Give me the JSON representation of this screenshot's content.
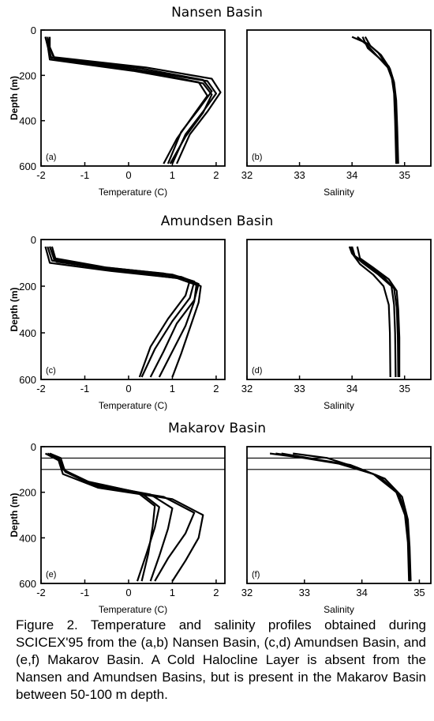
{
  "caption": "Figure 2.  Temperature and salinity profiles obtained during SCICEX'95 from the (a,b) Nansen Basin, (c,d) Amundsen Basin, and (e,f) Makarov Basin.  A Cold Halocline Layer is absent from the Nansen and Amundsen Basins, but is present in the Makarov Basin between 50-100 m depth.",
  "chart_data": [
    {
      "type": "line",
      "panel": "(a)",
      "basin_title": "Nansen Basin",
      "xlabel": "Temperature  (C)",
      "ylabel": "Depth  (m)",
      "xlim": [
        -2,
        2.2
      ],
      "ylim": [
        0,
        600
      ],
      "y_inverted": true,
      "xticks": [
        "-2",
        "-1",
        "0",
        "1",
        "2"
      ],
      "yticks": [
        "0",
        "200",
        "400",
        "600"
      ],
      "series": [
        {
          "x": [
            -1.9,
            -1.85,
            -1.8,
            0.3,
            1.7,
            1.9,
            1.6,
            1.2,
            0.9
          ],
          "y": [
            30,
            60,
            120,
            170,
            220,
            270,
            350,
            450,
            590
          ]
        },
        {
          "x": [
            -1.85,
            -1.8,
            -1.7,
            0.2,
            1.8,
            2.0,
            1.7,
            1.3,
            1.0
          ],
          "y": [
            30,
            80,
            125,
            175,
            225,
            280,
            360,
            460,
            590
          ]
        },
        {
          "x": [
            -1.9,
            -1.85,
            -1.75,
            0.0,
            1.6,
            1.8,
            1.5,
            1.1,
            0.8
          ],
          "y": [
            30,
            70,
            130,
            170,
            230,
            290,
            370,
            480,
            590
          ]
        },
        {
          "x": [
            -1.8,
            -1.8,
            -1.7,
            0.4,
            1.9,
            2.1,
            1.8,
            1.4,
            1.1
          ],
          "y": [
            30,
            75,
            120,
            165,
            215,
            275,
            360,
            460,
            590
          ]
        },
        {
          "x": [
            -1.9,
            -1.85,
            -1.8,
            0.1,
            1.7,
            1.9,
            1.7,
            1.3,
            0.95
          ],
          "y": [
            30,
            65,
            130,
            180,
            235,
            285,
            365,
            470,
            590
          ]
        }
      ]
    },
    {
      "type": "line",
      "panel": "(b)",
      "basin_title": "Nansen Basin",
      "xlabel": "Salinity",
      "ylabel": "",
      "xlim": [
        32,
        35.5
      ],
      "ylim": [
        0,
        600
      ],
      "y_inverted": true,
      "xticks": [
        "32",
        "33",
        "34",
        "35"
      ],
      "yticks": [],
      "series": [
        {
          "x": [
            34.0,
            34.3,
            34.5,
            34.65,
            34.75,
            34.8,
            34.82,
            34.84
          ],
          "y": [
            30,
            60,
            100,
            150,
            200,
            280,
            400,
            590
          ]
        },
        {
          "x": [
            34.2,
            34.3,
            34.5,
            34.7,
            34.78,
            34.83,
            34.85,
            34.86
          ],
          "y": [
            30,
            80,
            120,
            160,
            220,
            300,
            420,
            590
          ]
        },
        {
          "x": [
            34.25,
            34.35,
            34.55,
            34.72,
            34.8,
            34.84,
            34.86,
            34.88
          ],
          "y": [
            30,
            70,
            110,
            170,
            230,
            310,
            430,
            590
          ]
        },
        {
          "x": [
            34.1,
            34.28,
            34.48,
            34.68,
            34.76,
            34.82,
            34.84,
            34.85
          ],
          "y": [
            30,
            65,
            115,
            165,
            215,
            290,
            410,
            590
          ]
        }
      ]
    },
    {
      "type": "line",
      "panel": "(c)",
      "basin_title": "Amundsen Basin",
      "xlabel": "Temperature  (C)",
      "ylabel": "Depth  (m)",
      "xlim": [
        -2,
        2.2
      ],
      "ylim": [
        0,
        600
      ],
      "y_inverted": true,
      "xticks": [
        "-2",
        "-1",
        "0",
        "1",
        "2"
      ],
      "yticks": [
        "0",
        "200",
        "400",
        "600"
      ],
      "series": [
        {
          "x": [
            -1.8,
            -1.7,
            -0.5,
            1.0,
            1.5,
            1.4,
            1.0,
            0.6,
            0.3
          ],
          "y": [
            30,
            80,
            120,
            150,
            180,
            250,
            350,
            470,
            590
          ]
        },
        {
          "x": [
            -1.85,
            -1.75,
            -0.2,
            1.2,
            1.6,
            1.5,
            1.1,
            0.8,
            0.5
          ],
          "y": [
            30,
            90,
            130,
            160,
            190,
            260,
            360,
            480,
            590
          ]
        },
        {
          "x": [
            -1.8,
            -1.7,
            -0.8,
            0.8,
            1.4,
            1.3,
            0.9,
            0.5,
            0.25
          ],
          "y": [
            30,
            85,
            115,
            145,
            175,
            240,
            340,
            460,
            590
          ]
        },
        {
          "x": [
            -1.9,
            -1.8,
            -0.4,
            1.1,
            1.55,
            1.5,
            1.3,
            1.0,
            0.7
          ],
          "y": [
            30,
            100,
            135,
            165,
            195,
            265,
            370,
            480,
            590
          ]
        },
        {
          "x": [
            -1.75,
            -1.65,
            0.0,
            1.3,
            1.65,
            1.6,
            1.4,
            1.2,
            1.0
          ],
          "y": [
            30,
            95,
            140,
            170,
            200,
            270,
            380,
            490,
            590
          ]
        }
      ]
    },
    {
      "type": "line",
      "panel": "(d)",
      "basin_title": "Amundsen Basin",
      "xlabel": "Salinity",
      "ylabel": "",
      "xlim": [
        32,
        35.5
      ],
      "ylim": [
        0,
        600
      ],
      "y_inverted": true,
      "xticks": [
        "32",
        "33",
        "34",
        "35"
      ],
      "yticks": [],
      "series": [
        {
          "x": [
            33.95,
            34.0,
            34.2,
            34.5,
            34.75,
            34.8,
            34.82,
            34.83
          ],
          "y": [
            30,
            60,
            100,
            150,
            200,
            280,
            400,
            590
          ]
        },
        {
          "x": [
            34.0,
            34.05,
            34.3,
            34.6,
            34.8,
            34.85,
            34.87,
            34.88
          ],
          "y": [
            30,
            70,
            110,
            160,
            210,
            290,
            410,
            590
          ]
        },
        {
          "x": [
            34.1,
            34.15,
            34.4,
            34.7,
            34.85,
            34.88,
            34.9,
            34.9
          ],
          "y": [
            30,
            80,
            120,
            170,
            220,
            300,
            420,
            590
          ]
        },
        {
          "x": [
            33.98,
            34.02,
            34.15,
            34.4,
            34.6,
            34.7,
            34.72,
            34.73
          ],
          "y": [
            30,
            65,
            105,
            150,
            200,
            280,
            400,
            590
          ]
        }
      ]
    },
    {
      "type": "line",
      "panel": "(e)",
      "basin_title": "Makarov Basin",
      "xlabel": "Temperature  (C)",
      "ylabel": "Depth  (m)",
      "xlim": [
        -2,
        2.2
      ],
      "ylim": [
        0,
        600
      ],
      "y_inverted": true,
      "xticks": [
        "-2",
        "-1",
        "0",
        "1",
        "2"
      ],
      "yticks": [
        "0",
        "200",
        "400",
        "600"
      ],
      "reference_lines_y": [
        50,
        100
      ],
      "series": [
        {
          "x": [
            -1.8,
            -1.6,
            -1.5,
            -1.0,
            0.2,
            0.6,
            0.55,
            0.45,
            0.3
          ],
          "y": [
            30,
            50,
            100,
            150,
            200,
            260,
            350,
            470,
            590
          ]
        },
        {
          "x": [
            -1.85,
            -1.6,
            -1.5,
            -0.9,
            0.5,
            1.0,
            0.9,
            0.7,
            0.5
          ],
          "y": [
            30,
            55,
            100,
            160,
            210,
            270,
            360,
            480,
            590
          ]
        },
        {
          "x": [
            -1.8,
            -1.55,
            -1.45,
            -0.8,
            0.8,
            1.5,
            1.3,
            0.9,
            0.6
          ],
          "y": [
            30,
            50,
            110,
            170,
            220,
            290,
            380,
            490,
            590
          ]
        },
        {
          "x": [
            -1.9,
            -1.6,
            -1.5,
            -0.7,
            1.0,
            1.7,
            1.6,
            1.3,
            1.0
          ],
          "y": [
            30,
            60,
            120,
            180,
            230,
            300,
            400,
            500,
            590
          ]
        },
        {
          "x": [
            -1.85,
            -1.6,
            -1.45,
            -0.9,
            0.3,
            0.7,
            0.6,
            0.4,
            0.2
          ],
          "y": [
            30,
            50,
            105,
            155,
            205,
            265,
            355,
            475,
            590
          ]
        }
      ]
    },
    {
      "type": "line",
      "panel": "(f)",
      "basin_title": "Makarov Basin",
      "xlabel": "Salinity",
      "ylabel": "",
      "xlim": [
        32,
        35.2
      ],
      "ylim": [
        0,
        600
      ],
      "y_inverted": true,
      "xticks": [
        "32",
        "33",
        "34",
        "35"
      ],
      "yticks": [],
      "reference_lines_y": [
        50,
        100
      ],
      "series": [
        {
          "x": [
            32.4,
            33.0,
            33.6,
            34.2,
            34.6,
            34.75,
            34.8,
            34.82
          ],
          "y": [
            30,
            50,
            75,
            120,
            200,
            300,
            420,
            590
          ]
        },
        {
          "x": [
            32.6,
            33.2,
            33.8,
            34.3,
            34.65,
            34.78,
            34.82,
            34.84
          ],
          "y": [
            30,
            55,
            80,
            130,
            210,
            310,
            430,
            590
          ]
        },
        {
          "x": [
            32.8,
            33.4,
            33.9,
            34.4,
            34.7,
            34.8,
            34.83,
            34.85
          ],
          "y": [
            30,
            50,
            90,
            140,
            220,
            320,
            440,
            590
          ]
        },
        {
          "x": [
            32.5,
            33.1,
            33.7,
            34.25,
            34.62,
            34.76,
            34.81,
            34.83
          ],
          "y": [
            30,
            52,
            78,
            125,
            205,
            305,
            425,
            590
          ]
        }
      ]
    }
  ]
}
